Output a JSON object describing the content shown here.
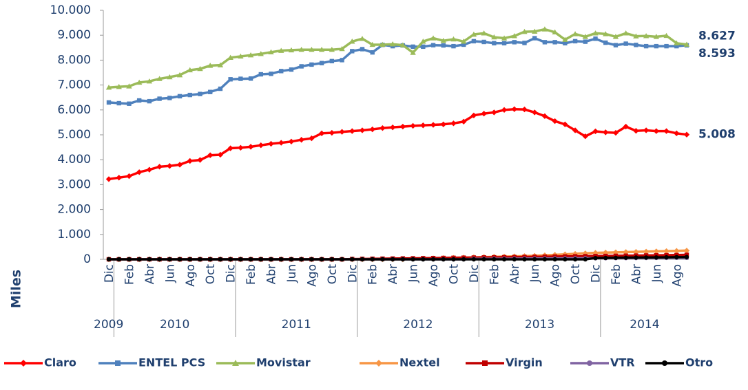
{
  "chart_data": {
    "type": "line",
    "y_label": "Miles",
    "categories": [
      "Dic",
      null,
      "Feb",
      null,
      "Abr",
      null,
      "Jun",
      null,
      "Ago",
      null,
      "Oct",
      null,
      "Dic",
      null,
      "Feb",
      null,
      "Abr",
      null,
      "Jun",
      null,
      "Ago",
      null,
      "Oct",
      null,
      "Dic",
      null,
      "Feb",
      null,
      "Abr",
      null,
      "Jun",
      null,
      "Ago",
      null,
      "Oct",
      null,
      "Dic",
      null,
      "Feb",
      null,
      "Abr",
      null,
      "Jun",
      null,
      "Ago",
      null,
      "Oct",
      null,
      "Dic",
      null,
      "Feb",
      null,
      "Abr",
      null,
      "Jun",
      null,
      "Ago",
      null
    ],
    "groups": [
      "2009",
      "2010",
      "2011",
      "2012",
      "2013",
      "2014"
    ],
    "ylim": [
      0,
      10000
    ],
    "yticks": [
      0,
      {
        "value": 1000,
        "label": "1.000"
      },
      {
        "value": 2000,
        "label": "2.000"
      },
      {
        "value": 3000,
        "label": "3.000"
      },
      {
        "value": 4000,
        "label": "4.000"
      },
      {
        "value": 5000,
        "label": "5.000"
      },
      {
        "value": 6000,
        "label": "6.000"
      },
      {
        "value": 7000,
        "label": "7.000"
      },
      {
        "value": 8000,
        "label": "8.000"
      },
      {
        "value": 9000,
        "label": "9.000"
      },
      {
        "value": 10000,
        "label": "10.000"
      }
    ],
    "grid": false,
    "legend": "bottom",
    "series": [
      {
        "name": "Claro",
        "color": "#ff0000",
        "marker": "diamond",
        "last_label": "5.008",
        "values": [
          3220,
          3280,
          3340,
          3500,
          3600,
          3720,
          3750,
          3800,
          3950,
          3990,
          4180,
          4200,
          4460,
          4480,
          4520,
          4580,
          4640,
          4680,
          4730,
          4800,
          4860,
          5060,
          5080,
          5120,
          5150,
          5180,
          5220,
          5270,
          5300,
          5330,
          5360,
          5380,
          5400,
          5420,
          5460,
          5530,
          5780,
          5850,
          5900,
          6000,
          6030,
          6020,
          5900,
          5750,
          5550,
          5420,
          5180,
          4940,
          5140,
          5100,
          5080,
          5330,
          5160,
          5180,
          5150,
          5150,
          5060,
          5008
        ]
      },
      {
        "name": "ENTEL PCS",
        "color": "#4f81bd",
        "marker": "square",
        "last_label": "8.593",
        "values": [
          6300,
          6270,
          6250,
          6380,
          6350,
          6450,
          6480,
          6550,
          6600,
          6640,
          6720,
          6850,
          7230,
          7250,
          7260,
          7430,
          7450,
          7560,
          7620,
          7750,
          7820,
          7880,
          7960,
          8000,
          8360,
          8440,
          8310,
          8610,
          8560,
          8590,
          8540,
          8540,
          8600,
          8590,
          8560,
          8620,
          8760,
          8730,
          8680,
          8680,
          8720,
          8690,
          8880,
          8720,
          8720,
          8680,
          8760,
          8740,
          8860,
          8700,
          8600,
          8660,
          8610,
          8560,
          8560,
          8560,
          8560,
          8593
        ]
      },
      {
        "name": "Movistar",
        "color": "#9bbb59",
        "marker": "triangle",
        "last_label": "8.627",
        "values": [
          6900,
          6930,
          6950,
          7100,
          7150,
          7250,
          7320,
          7400,
          7600,
          7650,
          7780,
          7800,
          8100,
          8150,
          8200,
          8250,
          8320,
          8380,
          8400,
          8420,
          8420,
          8420,
          8420,
          8450,
          8750,
          8860,
          8620,
          8620,
          8640,
          8600,
          8300,
          8750,
          8880,
          8780,
          8840,
          8750,
          9030,
          9080,
          8920,
          8880,
          8970,
          9140,
          9150,
          9240,
          9120,
          8820,
          9050,
          8940,
          9080,
          9050,
          8940,
          9080,
          8960,
          8970,
          8940,
          8980,
          8680,
          8627
        ]
      },
      {
        "name": "Nextel",
        "color": "#f79646",
        "marker": "star",
        "values": [
          0,
          0,
          0,
          0,
          0,
          0,
          0,
          0,
          0,
          0,
          0,
          0,
          0,
          0,
          0,
          0,
          0,
          0,
          0,
          0,
          0,
          0,
          0,
          0,
          0,
          0,
          0,
          0,
          0,
          0,
          20,
          30,
          40,
          50,
          60,
          70,
          80,
          90,
          100,
          110,
          120,
          130,
          140,
          160,
          180,
          200,
          220,
          240,
          260,
          270,
          280,
          290,
          300,
          310,
          320,
          330,
          340,
          350
        ]
      },
      {
        "name": "Virgin",
        "color": "#c00000",
        "marker": "square",
        "values": [
          0,
          0,
          0,
          0,
          0,
          0,
          0,
          0,
          0,
          0,
          0,
          0,
          0,
          0,
          0,
          0,
          0,
          0,
          0,
          0,
          0,
          0,
          0,
          0,
          10,
          15,
          20,
          25,
          30,
          35,
          40,
          45,
          50,
          55,
          60,
          65,
          70,
          75,
          80,
          85,
          90,
          95,
          100,
          105,
          110,
          115,
          120,
          125,
          130,
          135,
          140,
          145,
          150,
          155,
          160,
          165,
          170,
          180
        ]
      },
      {
        "name": "VTR",
        "color": "#8064a2",
        "marker": "circle",
        "values": [
          0,
          0,
          0,
          0,
          0,
          0,
          0,
          0,
          0,
          0,
          0,
          0,
          0,
          0,
          0,
          0,
          0,
          0,
          0,
          0,
          0,
          0,
          0,
          0,
          0,
          0,
          0,
          0,
          0,
          0,
          0,
          0,
          0,
          0,
          0,
          0,
          20,
          22,
          24,
          26,
          28,
          30,
          32,
          34,
          36,
          38,
          40,
          42,
          44,
          46,
          48,
          50,
          52,
          54,
          56,
          58,
          60,
          60
        ]
      },
      {
        "name": "Otro",
        "color": "#000000",
        "marker": "circle",
        "values": [
          0,
          0,
          0,
          0,
          0,
          0,
          0,
          0,
          0,
          0,
          0,
          0,
          0,
          0,
          0,
          0,
          0,
          0,
          0,
          0,
          0,
          0,
          0,
          0,
          0,
          0,
          0,
          0,
          0,
          0,
          0,
          0,
          0,
          0,
          0,
          0,
          0,
          0,
          0,
          0,
          0,
          0,
          0,
          0,
          0,
          0,
          0,
          0,
          50,
          55,
          60,
          65,
          70,
          72,
          75,
          80,
          85,
          90
        ]
      }
    ]
  }
}
